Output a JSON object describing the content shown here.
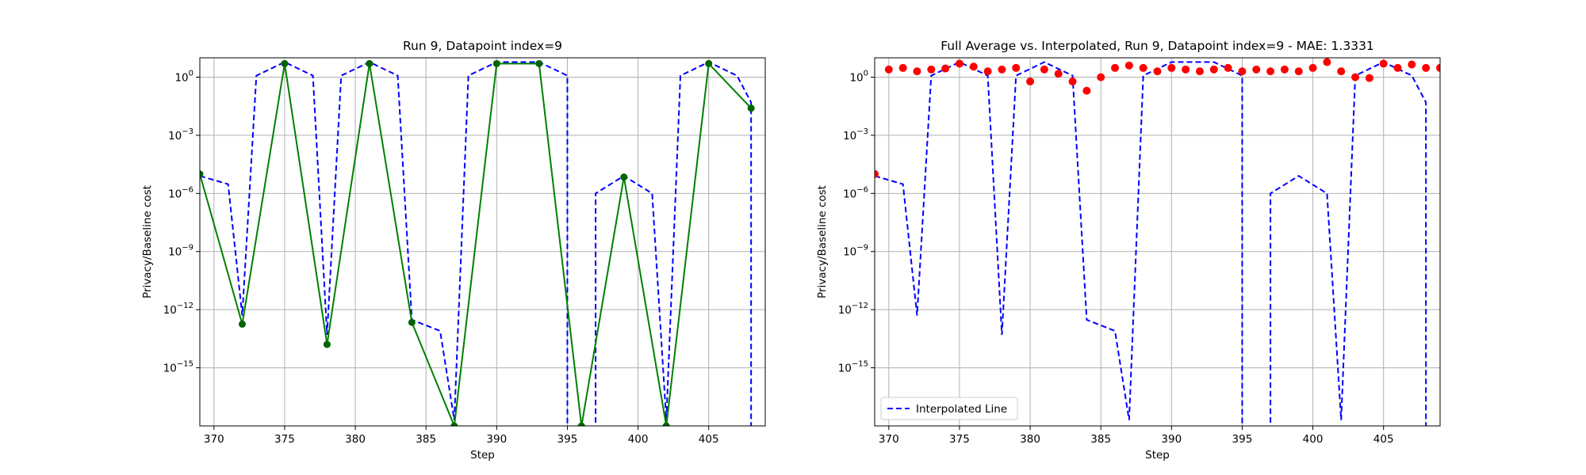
{
  "chart_data": [
    {
      "type": "line",
      "title": "Run 9, Datapoint index=9",
      "xlabel": "Step",
      "ylabel": "Privacy/Baseline cost",
      "xlim": [
        369,
        409
      ],
      "yscale": "log",
      "ylim": [
        1e-18,
        10
      ],
      "grid": true,
      "x_ticks": [
        370,
        375,
        380,
        385,
        390,
        395,
        400,
        405
      ],
      "y_ticks": [
        {
          "value": 1,
          "base": "10",
          "exp": "0"
        },
        {
          "value": 0.001,
          "base": "10",
          "exp": "−3"
        },
        {
          "value": 1e-06,
          "base": "10",
          "exp": "−6"
        },
        {
          "value": 1e-09,
          "base": "10",
          "exp": "−9"
        },
        {
          "value": 1e-12,
          "base": "10",
          "exp": "−12"
        },
        {
          "value": 1e-15,
          "base": "10",
          "exp": "−15"
        }
      ],
      "series": [
        {
          "style": "dashed",
          "color": "#0000ff",
          "points": [
            [
              369,
              8e-06
            ],
            [
              371,
              3e-06
            ],
            [
              372,
              5e-13
            ],
            [
              373,
              1.2
            ],
            [
              375,
              6
            ],
            [
              377,
              1.2
            ],
            [
              378,
              5e-14
            ],
            [
              379,
              1.2
            ],
            [
              381,
              6
            ],
            [
              383,
              1.2
            ],
            [
              384,
              3e-13
            ],
            [
              386,
              8e-14
            ],
            [
              387,
              2e-18
            ],
            [
              388,
              1.2
            ],
            [
              390,
              6
            ],
            [
              393,
              6
            ],
            [
              395,
              1.2
            ],
            [
              395,
              1e-19
            ],
            [
              397,
              1e-19
            ],
            [
              397,
              1e-06
            ],
            [
              399,
              8e-06
            ],
            [
              401,
              1e-06
            ],
            [
              402,
              2e-18
            ],
            [
              403,
              1.2
            ],
            [
              405,
              6
            ],
            [
              407,
              1.2
            ],
            [
              408,
              0.05
            ],
            [
              408,
              1e-19
            ]
          ]
        },
        {
          "style": "solid-markers",
          "color": "#008000",
          "marker_color": "#006400",
          "points": [
            [
              369,
              1e-05
            ],
            [
              372,
              1.8e-13
            ],
            [
              375,
              5
            ],
            [
              378,
              1.6e-14
            ],
            [
              381,
              5
            ],
            [
              384,
              2.2e-13
            ],
            [
              387,
              1e-18
            ],
            [
              390,
              5
            ],
            [
              393,
              5
            ],
            [
              396,
              1e-18
            ],
            [
              399,
              7e-06
            ],
            [
              402,
              1e-18
            ],
            [
              405,
              5
            ],
            [
              408,
              0.025
            ]
          ]
        }
      ]
    },
    {
      "type": "line",
      "title": "Full Average vs. Interpolated, Run 9, Datapoint index=9 - MAE: 1.3331",
      "xlabel": "Step",
      "ylabel": "Privacy/Baseline cost",
      "xlim": [
        369,
        409
      ],
      "yscale": "log",
      "ylim": [
        1e-18,
        10
      ],
      "grid": true,
      "legend_position": "lower-left",
      "x_ticks": [
        370,
        375,
        380,
        385,
        390,
        395,
        400,
        405
      ],
      "y_ticks": [
        {
          "value": 1,
          "base": "10",
          "exp": "0"
        },
        {
          "value": 0.001,
          "base": "10",
          "exp": "−3"
        },
        {
          "value": 1e-06,
          "base": "10",
          "exp": "−6"
        },
        {
          "value": 1e-09,
          "base": "10",
          "exp": "−9"
        },
        {
          "value": 1e-12,
          "base": "10",
          "exp": "−12"
        },
        {
          "value": 1e-15,
          "base": "10",
          "exp": "−15"
        }
      ],
      "series": [
        {
          "name": "Interpolated Line",
          "style": "dashed",
          "color": "#0000ff",
          "points": [
            [
              369,
              8e-06
            ],
            [
              371,
              3e-06
            ],
            [
              372,
              5e-13
            ],
            [
              373,
              1.2
            ],
            [
              375,
              6
            ],
            [
              377,
              1.2
            ],
            [
              378,
              5e-14
            ],
            [
              379,
              1.2
            ],
            [
              381,
              6
            ],
            [
              383,
              1.2
            ],
            [
              384,
              3e-13
            ],
            [
              386,
              8e-14
            ],
            [
              387,
              2e-18
            ],
            [
              388,
              1.2
            ],
            [
              390,
              6
            ],
            [
              393,
              6
            ],
            [
              395,
              1.2
            ],
            [
              395,
              1e-19
            ],
            [
              397,
              1e-19
            ],
            [
              397,
              1e-06
            ],
            [
              399,
              8e-06
            ],
            [
              401,
              1e-06
            ],
            [
              402,
              2e-18
            ],
            [
              403,
              1.2
            ],
            [
              405,
              6
            ],
            [
              407,
              1.2
            ],
            [
              408,
              0.05
            ],
            [
              408,
              1e-19
            ]
          ]
        },
        {
          "style": "scatter",
          "color": "#ff0000",
          "points": [
            [
              369,
              1e-05
            ],
            [
              370,
              2.5
            ],
            [
              371,
              3
            ],
            [
              372,
              2
            ],
            [
              373,
              2.5
            ],
            [
              374,
              2.8
            ],
            [
              375,
              5
            ],
            [
              376,
              3.5
            ],
            [
              377,
              2
            ],
            [
              378,
              2.5
            ],
            [
              379,
              3
            ],
            [
              380,
              0.6
            ],
            [
              381,
              2.5
            ],
            [
              382,
              1.5
            ],
            [
              383,
              0.6
            ],
            [
              384,
              0.2
            ],
            [
              385,
              1
            ],
            [
              386,
              3
            ],
            [
              387,
              4
            ],
            [
              388,
              3
            ],
            [
              389,
              2
            ],
            [
              390,
              3
            ],
            [
              391,
              2.5
            ],
            [
              392,
              2
            ],
            [
              393,
              2.5
            ],
            [
              394,
              3
            ],
            [
              395,
              2
            ],
            [
              396,
              2.5
            ],
            [
              397,
              2
            ],
            [
              398,
              2.5
            ],
            [
              399,
              2
            ],
            [
              400,
              3
            ],
            [
              401,
              6
            ],
            [
              402,
              2
            ],
            [
              403,
              1
            ],
            [
              404,
              0.9
            ],
            [
              405,
              5
            ],
            [
              406,
              3
            ],
            [
              407,
              4.5
            ],
            [
              408,
              3
            ],
            [
              409,
              3
            ],
            [
              410,
              2.5
            ]
          ]
        }
      ]
    }
  ]
}
